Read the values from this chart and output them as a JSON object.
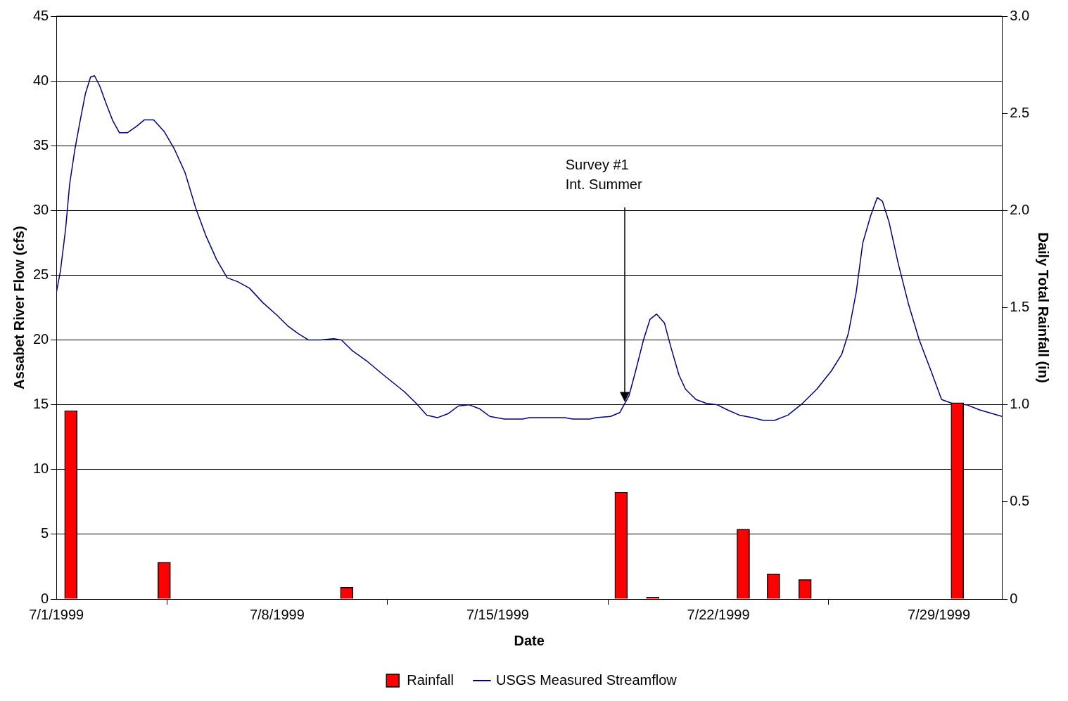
{
  "chart_data": {
    "type": "bar",
    "xlabel": "Date",
    "ylabel": "Assabet River Flow (cfs)",
    "y2label": "Daily Total Rainfall (in)",
    "xlim": [
      "1999-07-01",
      "1999-07-31"
    ],
    "xticks": [
      {
        "value": "1999-07-01",
        "label": "7/1/1999"
      },
      {
        "value": "1999-07-08",
        "label": "7/8/1999"
      },
      {
        "value": "1999-07-15",
        "label": "7/15/1999"
      },
      {
        "value": "1999-07-22",
        "label": "7/22/1999"
      },
      {
        "value": "1999-07-29",
        "label": "7/29/1999"
      }
    ],
    "ylim": [
      0,
      45
    ],
    "yticks": [
      0,
      5,
      10,
      15,
      20,
      25,
      30,
      35,
      40,
      45
    ],
    "y2lim": [
      0,
      3
    ],
    "y2ticks": [
      0,
      0.5,
      {
        "value": 1,
        "label": "1.0"
      },
      1.5,
      {
        "value": 2,
        "label": "2.0"
      },
      2.5,
      {
        "value": 3,
        "label": "3.0"
      }
    ],
    "grid": "y",
    "legend": "bottom",
    "annotations": [
      "Survey #1\nInt. Summer"
    ],
    "series": [
      {
        "name": "Rainfall",
        "axis": "y2",
        "color": "#ff0000",
        "x": [
          "1999-07-01T11:00",
          "1999-07-04T10:00",
          "1999-07-10T05:00",
          "1999-07-18T22:00",
          "1999-07-19T22:00",
          "1999-07-22T19:00",
          "1999-07-23T18:00",
          "1999-07-24T18:00",
          "1999-07-29T14:00"
        ],
        "values": [
          0.97,
          0.19,
          0.06,
          0.55,
          0.01,
          0.36,
          0.13,
          0.1,
          1.01
        ]
      },
      {
        "name": "USGS Measured Streamflow",
        "type": "line",
        "axis": "y",
        "color": "#000080",
        "x": [
          "1999-07-01T00:00",
          "1999-07-01T03:00",
          "1999-07-01T07:00",
          "1999-07-01T10:00",
          "1999-07-01T14:00",
          "1999-07-01T18:00",
          "1999-07-01T22:00",
          "1999-07-02T02:00",
          "1999-07-02T05:00",
          "1999-07-02T09:00",
          "1999-07-02T14:00",
          "1999-07-02T19:00",
          "1999-07-03T00:00",
          "1999-07-03T06:00",
          "1999-07-03T13:00",
          "1999-07-03T19:00",
          "1999-07-04T02:00",
          "1999-07-04T10:00",
          "1999-07-04T18:00",
          "1999-07-05T02:00",
          "1999-07-05T10:00",
          "1999-07-05T18:00",
          "1999-07-06T02:00",
          "1999-07-06T10:00",
          "1999-07-06T18:00",
          "1999-07-07T03:00",
          "1999-07-07T13:00",
          "1999-07-08T00:00",
          "1999-07-08T08:00",
          "1999-07-08T16:00",
          "1999-07-09T00:00",
          "1999-07-09T09:00",
          "1999-07-09T19:00",
          "1999-07-10T01:00",
          "1999-07-10T09:00",
          "1999-07-10T20:00",
          "1999-07-11T09:00",
          "1999-07-12T01:00",
          "1999-07-12T10:00",
          "1999-07-12T18:00",
          "1999-07-13T02:00",
          "1999-07-13T10:00",
          "1999-07-13T18:00",
          "1999-07-14T02:00",
          "1999-07-14T10:00",
          "1999-07-14T18:00",
          "1999-07-15T05:00",
          "1999-07-15T19:00",
          "1999-07-16T00:00",
          "1999-07-17T03:00",
          "1999-07-17T09:00",
          "1999-07-17T22:00",
          "1999-07-18T03:00",
          "1999-07-18T14:00",
          "1999-07-18T21:00",
          "1999-07-19T04:00",
          "1999-07-19T09:00",
          "1999-07-19T15:00",
          "1999-07-19T20:00",
          "1999-07-20T01:00",
          "1999-07-20T07:00",
          "1999-07-20T12:00",
          "1999-07-20T18:00",
          "1999-07-20T23:00",
          "1999-07-21T07:00",
          "1999-07-21T15:00",
          "1999-07-21T23:00",
          "1999-07-22T07:00",
          "1999-07-22T16:00",
          "1999-07-23T02:00",
          "1999-07-23T10:00",
          "1999-07-23T19:00",
          "1999-07-24T05:00",
          "1999-07-24T16:00",
          "1999-07-25T03:00",
          "1999-07-25T14:00",
          "1999-07-25T22:00",
          "1999-07-26T03:00",
          "1999-07-26T09:00",
          "1999-07-26T14:00",
          "1999-07-26T20:00",
          "1999-07-27T01:00",
          "1999-07-27T05:00",
          "1999-07-27T10:00",
          "1999-07-27T17:00",
          "1999-07-28T01:00",
          "1999-07-28T09:00",
          "1999-07-28T18:00",
          "1999-07-29T02:00",
          "1999-07-29T10:00",
          "1999-07-29T21:00",
          "1999-07-30T07:00",
          "1999-07-31T00:00"
        ],
        "values": [
          23.7,
          25.3,
          28.6,
          32,
          34.7,
          36.9,
          39,
          40.3,
          40.4,
          39.6,
          38.2,
          36.9,
          36,
          36,
          36.5,
          37,
          37,
          36.1,
          34.7,
          32.9,
          30.2,
          28,
          26.2,
          24.8,
          24.5,
          24,
          22.9,
          21.9,
          21.1,
          20.5,
          20,
          20,
          20.1,
          20,
          19.2,
          18.4,
          17.3,
          16,
          15.1,
          14.2,
          14,
          14.3,
          14.9,
          15,
          14.7,
          14.1,
          13.9,
          13.9,
          14,
          14,
          13.9,
          13.9,
          14,
          14.1,
          14.4,
          15.7,
          17.6,
          20,
          21.6,
          22,
          21.3,
          19.4,
          17.3,
          16.2,
          15.4,
          15.1,
          15,
          14.6,
          14.2,
          14,
          13.8,
          13.8,
          14.2,
          15.1,
          16.2,
          17.6,
          18.9,
          20.5,
          23.7,
          27.5,
          29.6,
          31,
          30.7,
          29.1,
          25.9,
          22.7,
          20,
          17.6,
          15.4,
          15.1,
          15,
          14.6,
          14.1
        ]
      }
    ]
  }
}
